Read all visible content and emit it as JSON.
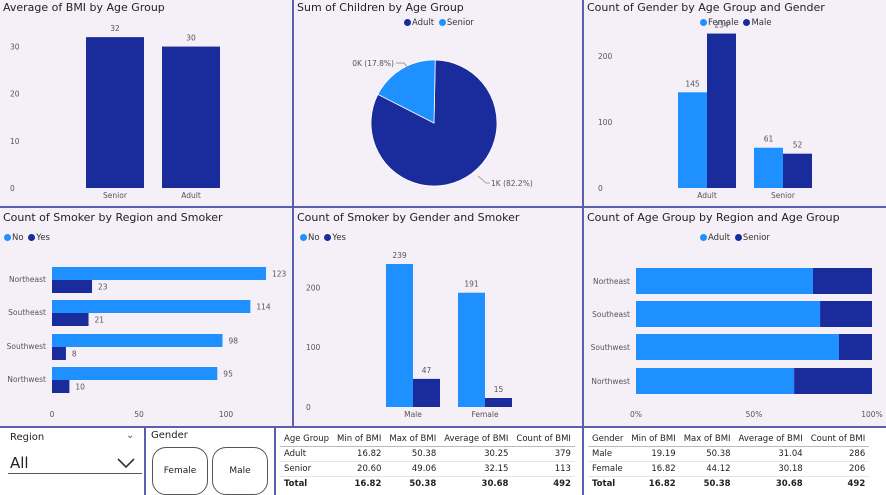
{
  "colors": {
    "dark": "#1a2b9c",
    "light": "#1e90ff",
    "panel_bg": "#f5f0f7",
    "border": "#5b5fb0"
  },
  "panels": {
    "bmi_age": {
      "title": "Average of BMI by Age Group"
    },
    "children_age": {
      "title": "Sum of Children by Age Group",
      "legend": [
        "Adult",
        "Senior"
      ]
    },
    "gender_age": {
      "title": "Count of Gender by Age Group and Gender",
      "legend": [
        "Female",
        "Male"
      ]
    },
    "smoker_region": {
      "title": "Count of Smoker by Region and Smoker",
      "legend": [
        "No",
        "Yes"
      ]
    },
    "smoker_gender": {
      "title": "Count of Smoker by Gender and Smoker",
      "legend": [
        "No",
        "Yes"
      ]
    },
    "age_region": {
      "title": "Count of Age Group by Region and Age Group",
      "legend": [
        "Adult",
        "Senior"
      ]
    }
  },
  "chart_data": [
    {
      "id": "bmi_age",
      "type": "bar",
      "title": "Average of BMI by Age Group",
      "categories": [
        "Senior",
        "Adult"
      ],
      "values": [
        32,
        30
      ],
      "data_labels": [
        "32",
        "30"
      ],
      "ylim": [
        0,
        35
      ],
      "yticks": [
        0,
        10,
        20,
        30
      ]
    },
    {
      "id": "children_age",
      "type": "pie",
      "title": "Sum of Children by Age Group",
      "labels": [
        "Adult",
        "Senior"
      ],
      "values": [
        82.2,
        17.8
      ],
      "slice_labels": [
        "1K (82.2%)",
        "0K (17.8%)"
      ]
    },
    {
      "id": "gender_age",
      "type": "bar",
      "title": "Count of Gender by Age Group and Gender",
      "categories": [
        "Adult",
        "Senior"
      ],
      "series": [
        {
          "name": "Female",
          "values": [
            145,
            61
          ]
        },
        {
          "name": "Male",
          "values": [
            234,
            52
          ]
        }
      ],
      "ylim": [
        0,
        250
      ],
      "yticks": [
        0,
        100,
        200
      ]
    },
    {
      "id": "smoker_region",
      "type": "bar",
      "orientation": "horizontal",
      "title": "Count of Smoker by Region and Smoker",
      "categories": [
        "Northeast",
        "Southeast",
        "Southwest",
        "Northwest"
      ],
      "series": [
        {
          "name": "No",
          "values": [
            123,
            114,
            98,
            95
          ]
        },
        {
          "name": "Yes",
          "values": [
            23,
            21,
            8,
            10
          ]
        }
      ],
      "xlim": [
        0,
        135
      ],
      "xticks": [
        0,
        50,
        100
      ]
    },
    {
      "id": "smoker_gender",
      "type": "bar",
      "title": "Count of Smoker by Gender and Smoker",
      "categories": [
        "Male",
        "Female"
      ],
      "series": [
        {
          "name": "No",
          "values": [
            239,
            191
          ]
        },
        {
          "name": "Yes",
          "values": [
            47,
            15
          ]
        }
      ],
      "ylim": [
        0,
        250
      ],
      "yticks": [
        0,
        100,
        200
      ]
    },
    {
      "id": "age_region",
      "type": "bar",
      "orientation": "horizontal",
      "stacked": "100%",
      "title": "Count of Age Group by Region and Age Group",
      "categories": [
        "Northeast",
        "Southeast",
        "Southwest",
        "Northwest"
      ],
      "series": [
        {
          "name": "Adult",
          "values": [
            75,
            78,
            86,
            67
          ]
        },
        {
          "name": "Senior",
          "values": [
            25,
            22,
            14,
            33
          ]
        }
      ],
      "xticks": [
        "0%",
        "50%",
        "100%"
      ]
    }
  ],
  "region_slicer": {
    "label": "Region",
    "value": "All"
  },
  "gender_slicer": {
    "label": "Gender",
    "buttons": [
      "Female",
      "Male"
    ]
  },
  "table_age": {
    "headers": [
      "Age Group",
      "Min of BMI",
      "Max of BMI",
      "Average of BMI",
      "Count of BMI"
    ],
    "rows": [
      [
        "Adult",
        "16.82",
        "50.38",
        "30.25",
        "379"
      ],
      [
        "Senior",
        "20.60",
        "49.06",
        "32.15",
        "113"
      ]
    ],
    "total": [
      "Total",
      "16.82",
      "50.38",
      "30.68",
      "492"
    ]
  },
  "table_gender": {
    "headers": [
      "Gender",
      "Min of BMI",
      "Max of BMI",
      "Average of BMI",
      "Count of BMI"
    ],
    "rows": [
      [
        "Male",
        "19.19",
        "50.38",
        "31.04",
        "286"
      ],
      [
        "Female",
        "16.82",
        "44.12",
        "30.18",
        "206"
      ]
    ],
    "total": [
      "Total",
      "16.82",
      "50.38",
      "30.68",
      "492"
    ]
  }
}
